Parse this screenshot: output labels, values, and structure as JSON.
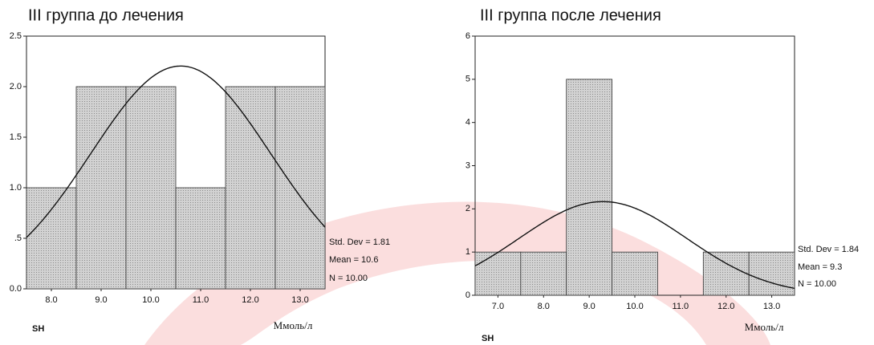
{
  "chart_data": [
    {
      "type": "histogram",
      "title": "III группа  до лечения",
      "xlabel": "Ммоль/л",
      "corner_label": "SH",
      "bins": [
        7.5,
        8.5,
        9.5,
        10.5,
        11.5,
        12.5,
        13.5
      ],
      "values": [
        1,
        2,
        2,
        1,
        2,
        2
      ],
      "color": "#c9c9c9",
      "xlim": [
        7.5,
        13.5
      ],
      "ylim": [
        0,
        2.5
      ],
      "xticks": [
        {
          "value": 8,
          "label": "8.0"
        },
        {
          "value": 9,
          "label": "9.0"
        },
        {
          "value": 10,
          "label": "10.0"
        },
        {
          "value": 11,
          "label": "11.0"
        },
        {
          "value": 12,
          "label": "12.0"
        },
        {
          "value": 13,
          "label": "13.0"
        }
      ],
      "yticks": [
        {
          "value": 0,
          "label": "0.0"
        },
        {
          "value": 0.5,
          "label": ".5"
        },
        {
          "value": 1,
          "label": "1.0"
        },
        {
          "value": 1.5,
          "label": "1.5"
        },
        {
          "value": 2,
          "label": "2.0"
        },
        {
          "value": 2.5,
          "label": "2.5"
        }
      ],
      "stats": [
        {
          "value": 1.81,
          "label": "Std. Dev = 1.81"
        },
        {
          "value": 10.6,
          "label": "Mean = 10.6"
        },
        {
          "value": 10,
          "label": "N = 10.00"
        }
      ]
    },
    {
      "type": "histogram",
      "title": "III группа  после лечения",
      "xlabel": "Ммоль/л",
      "corner_label": "SH",
      "bins": [
        6.5,
        7.5,
        8.5,
        9.5,
        10.5,
        11.5,
        12.5,
        13.5
      ],
      "values": [
        1,
        1,
        5,
        1,
        0,
        1,
        1
      ],
      "color": "#c9c9c9",
      "xlim": [
        6.5,
        13.5
      ],
      "ylim": [
        0,
        6
      ],
      "xticks": [
        {
          "value": 7,
          "label": "7.0"
        },
        {
          "value": 8,
          "label": "8.0"
        },
        {
          "value": 9,
          "label": "9.0"
        },
        {
          "value": 10,
          "label": "10.0"
        },
        {
          "value": 11,
          "label": "11.0"
        },
        {
          "value": 12,
          "label": "12.0"
        },
        {
          "value": 13,
          "label": "13.0"
        }
      ],
      "yticks": [
        0,
        1,
        2,
        3,
        4,
        5,
        6
      ],
      "stats": [
        {
          "value": 1.84,
          "label": "Std. Dev = 1.84"
        },
        {
          "value": 9.3,
          "label": "Mean = 9.3"
        },
        {
          "value": 10,
          "label": "N = 10.00"
        }
      ]
    }
  ]
}
